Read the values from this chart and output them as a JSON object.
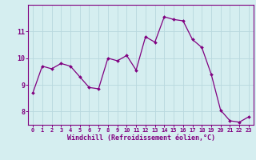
{
  "x": [
    0,
    1,
    2,
    3,
    4,
    5,
    6,
    7,
    8,
    9,
    10,
    11,
    12,
    13,
    14,
    15,
    16,
    17,
    18,
    19,
    20,
    21,
    22,
    23
  ],
  "y": [
    8.7,
    9.7,
    9.6,
    9.8,
    9.7,
    9.3,
    8.9,
    8.85,
    10.0,
    9.9,
    10.1,
    9.55,
    10.8,
    10.6,
    11.55,
    11.45,
    11.4,
    10.7,
    10.4,
    9.4,
    8.05,
    7.65,
    7.6,
    7.8
  ],
  "line_color": "#800080",
  "marker_color": "#800080",
  "bg_color": "#d5eef0",
  "grid_color": "#b8d8de",
  "xlabel": "Windchill (Refroidissement éolien,°C)",
  "xlabel_color": "#800080",
  "tick_color": "#800080",
  "ylim": [
    7.5,
    12.0
  ],
  "yticks": [
    8,
    9,
    10,
    11
  ],
  "xticks": [
    0,
    1,
    2,
    3,
    4,
    5,
    6,
    7,
    8,
    9,
    10,
    11,
    12,
    13,
    14,
    15,
    16,
    17,
    18,
    19,
    20,
    21,
    22,
    23
  ],
  "spine_color": "#800080",
  "axis_bg": "#d5eef0"
}
